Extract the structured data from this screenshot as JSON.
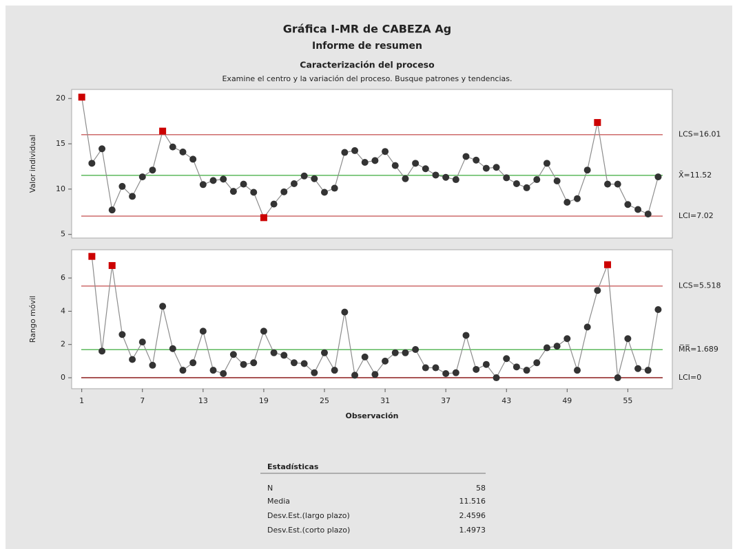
{
  "header": {
    "title": "Gráfica I-MR de CABEZA Ag",
    "subtitle": "Informe de resumen",
    "section": "Caracterización del proceso",
    "description": "Examine el centro y la variación del proceso. Busque patrones y tendencias."
  },
  "chart_data": [
    {
      "type": "line",
      "ylabel": "Valor individual",
      "color": "#333333",
      "out_color": "#cc0000",
      "line_color": "#8c8c8c",
      "x": [
        1,
        2,
        3,
        4,
        5,
        6,
        7,
        8,
        9,
        10,
        11,
        12,
        13,
        14,
        15,
        16,
        17,
        18,
        19,
        20,
        21,
        22,
        23,
        24,
        25,
        26,
        27,
        28,
        29,
        30,
        31,
        32,
        33,
        34,
        35,
        36,
        37,
        38,
        39,
        40,
        41,
        42,
        43,
        44,
        45,
        46,
        47,
        48,
        49,
        50,
        51,
        52,
        53,
        54,
        55,
        56,
        57,
        58
      ],
      "values": [
        20.15,
        12.85,
        14.45,
        7.7,
        10.3,
        9.2,
        11.35,
        12.1,
        16.4,
        14.65,
        14.1,
        13.3,
        10.5,
        10.95,
        11.1,
        9.75,
        10.55,
        9.65,
        6.85,
        8.35,
        9.7,
        10.6,
        11.45,
        11.15,
        9.65,
        10.1,
        14.05,
        14.25,
        12.95,
        13.15,
        14.15,
        12.6,
        11.15,
        12.85,
        12.25,
        11.55,
        11.3,
        11.05,
        13.6,
        13.2,
        12.3,
        12.4,
        11.25,
        10.6,
        10.15,
        11.05,
        12.85,
        10.9,
        8.55,
        8.95,
        12.1,
        17.35,
        10.55,
        10.55,
        8.3,
        7.75,
        7.25,
        11.35
      ],
      "xlim": [
        0,
        59.4
      ],
      "ylim": [
        4.6,
        21
      ],
      "yticks": [
        5,
        10,
        15,
        20
      ],
      "limits": [
        {
          "value": 16.01,
          "label": "LCS=16.01",
          "color": "#cd6a6a"
        },
        {
          "value": 11.52,
          "label": "X̄=11.52",
          "color": "#5cb85c"
        },
        {
          "value": 7.02,
          "label": "LCI=7.02",
          "color": "#cd6a6a"
        }
      ]
    },
    {
      "type": "line",
      "ylabel": "Rango móvil",
      "xlabel": "Observación",
      "color": "#333333",
      "out_color": "#cc0000",
      "line_color": "#8c8c8c",
      "x": [
        1,
        2,
        3,
        4,
        5,
        6,
        7,
        8,
        9,
        10,
        11,
        12,
        13,
        14,
        15,
        16,
        17,
        18,
        19,
        20,
        21,
        22,
        23,
        24,
        25,
        26,
        27,
        28,
        29,
        30,
        31,
        32,
        33,
        34,
        35,
        36,
        37,
        38,
        39,
        40,
        41,
        42,
        43,
        44,
        45,
        46,
        47,
        48,
        49,
        50,
        51,
        52,
        53,
        54,
        55,
        56,
        57,
        58
      ],
      "values": [
        null,
        7.3,
        1.6,
        6.75,
        2.6,
        1.1,
        2.15,
        0.75,
        4.3,
        1.75,
        0.45,
        0.9,
        2.8,
        0.45,
        0.25,
        1.4,
        0.8,
        0.9,
        2.8,
        1.5,
        1.35,
        0.9,
        0.85,
        0.3,
        1.5,
        0.45,
        3.95,
        0.15,
        1.25,
        0.2,
        1.0,
        1.5,
        1.5,
        1.7,
        0.6,
        0.6,
        0.25,
        0.3,
        2.55,
        0.5,
        0.8,
        0.0,
        1.15,
        0.65,
        0.45,
        0.9,
        1.8,
        1.9,
        2.35,
        0.45,
        3.05,
        5.25,
        6.8,
        0.0,
        2.35,
        0.55,
        0.45,
        4.1
      ],
      "xlim": [
        0,
        59.4
      ],
      "xticks": [
        1,
        7,
        13,
        19,
        25,
        31,
        37,
        43,
        49,
        55
      ],
      "ylim": [
        -0.66,
        7.7
      ],
      "yticks": [
        0,
        2,
        4,
        6
      ],
      "limits": [
        {
          "value": 5.518,
          "label": "LCS=5.518",
          "color": "#cd6a6a"
        },
        {
          "value": 1.689,
          "label": "M̅R̅=1.689",
          "color": "#5cb85c"
        },
        {
          "value": 0,
          "label": "LCI=0",
          "color": "#8b1a1a"
        }
      ]
    }
  ],
  "statistics": {
    "title": "Estadísticas",
    "rows": [
      [
        "N",
        "58"
      ],
      [
        "Media",
        "11.516"
      ],
      [
        "Desv.Est.(largo plazo)",
        "2.4596"
      ],
      [
        "Desv.Est.(corto plazo)",
        "1.4973"
      ]
    ]
  }
}
